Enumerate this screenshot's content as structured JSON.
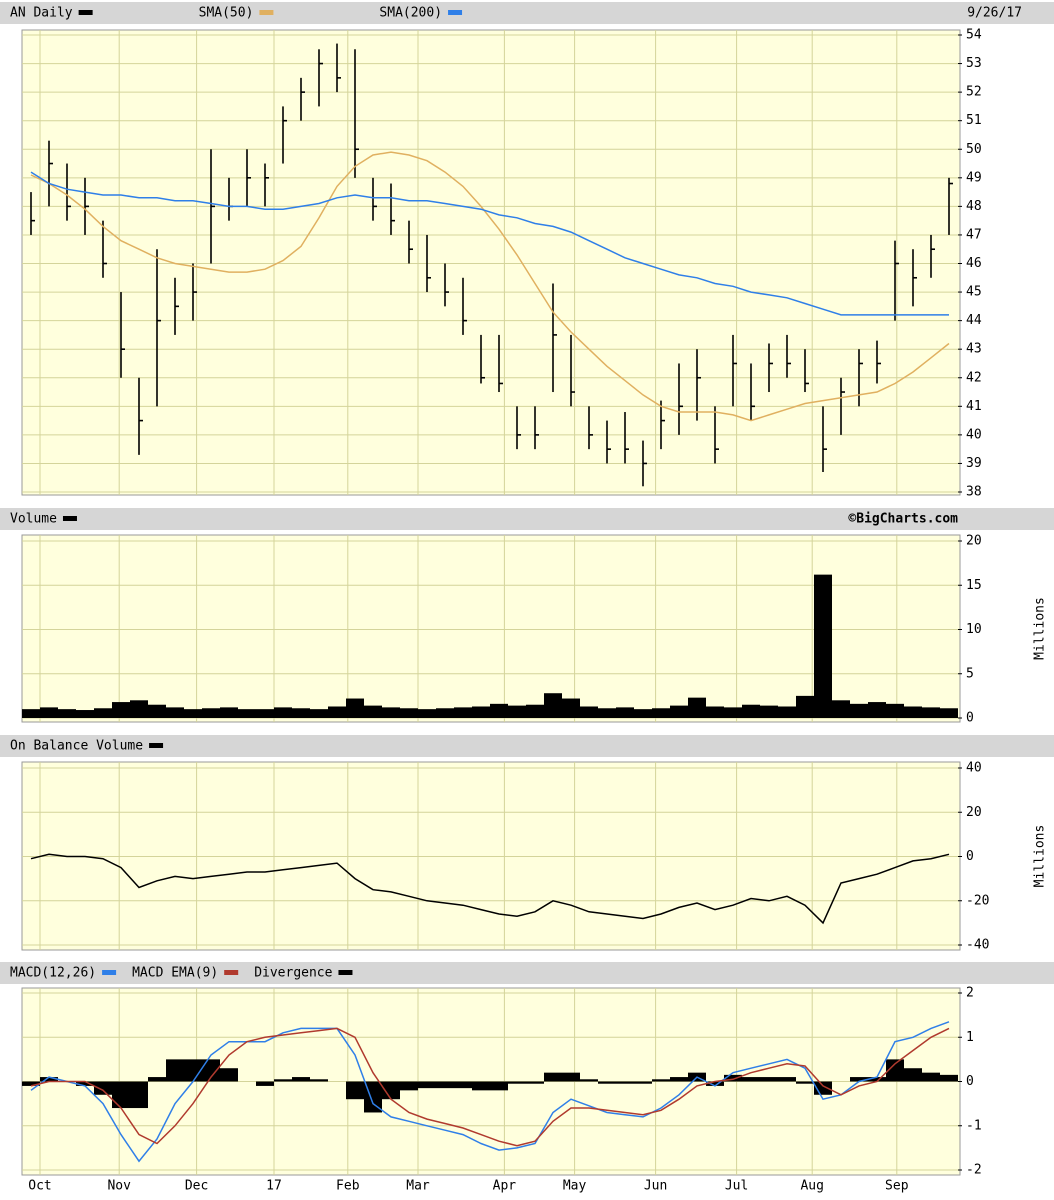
{
  "chart_data": [
    {
      "type": "ohlc",
      "date": "9/26/17",
      "x": [
        0.5,
        1.5,
        2.5,
        3.5,
        4.5,
        5.5,
        6.5,
        7.5,
        8.5,
        9.5,
        10.5,
        11.5,
        12.5,
        13.5,
        14.5,
        15.5,
        16.5,
        17.5,
        18.5,
        19.5,
        20.5,
        21.5,
        22.5,
        23.5,
        24.5,
        25.5,
        26.5,
        27.5,
        28.5,
        29.5,
        30.5,
        31.5,
        32.5,
        33.5,
        34.5,
        35.5,
        36.5,
        37.5,
        38.5,
        39.5,
        40.5,
        41.5,
        42.5,
        43.5,
        44.5,
        45.5,
        46.5,
        47.5,
        48.5,
        49.5,
        50.5,
        51.5
      ],
      "xlim": [
        0,
        52
      ],
      "ylim": [
        38,
        54
      ],
      "yticks": [
        38,
        39,
        40,
        41,
        42,
        43,
        44,
        45,
        46,
        47,
        48,
        49,
        50,
        51,
        52,
        53,
        54
      ],
      "grid": true,
      "series": [
        {
          "name": "AN Daily",
          "type": "ohlc",
          "color": "#000000",
          "high": [
            48.5,
            50.3,
            49.5,
            49,
            47.5,
            45,
            42,
            46.5,
            45.5,
            46,
            50,
            49,
            50,
            49.5,
            51.5,
            52.5,
            53.5,
            53.7,
            53.5,
            49,
            48.8,
            47.5,
            47,
            46,
            45.5,
            43.5,
            43.5,
            41,
            41,
            45.3,
            43.5,
            41,
            40.5,
            40.8,
            39.8,
            41.2,
            42.5,
            43,
            41,
            43.5,
            42.5,
            43.2,
            43.5,
            43,
            41,
            42,
            43,
            43.3,
            46.8,
            46.5,
            47,
            49
          ],
          "low": [
            47,
            48,
            47.5,
            47,
            45.5,
            42,
            39.3,
            41,
            43.5,
            44,
            46,
            47.5,
            48,
            48,
            49.5,
            51,
            51.5,
            52,
            49,
            47.5,
            47,
            46,
            45,
            44.5,
            43.5,
            41.8,
            41.5,
            39.5,
            39.5,
            41.5,
            41,
            39.5,
            39,
            39,
            38.2,
            39.5,
            40,
            40.5,
            39,
            41,
            40.5,
            41.5,
            42,
            41.5,
            38.7,
            40,
            41,
            41.8,
            44,
            44.5,
            45.5,
            47
          ],
          "close": [
            47.5,
            49.5,
            48,
            48,
            46,
            43,
            40.5,
            44,
            44.5,
            45,
            48,
            48,
            49,
            49,
            51,
            52,
            53,
            52.5,
            50,
            48,
            47.5,
            46.5,
            45.5,
            45,
            44,
            42,
            41.8,
            40,
            40,
            43.5,
            41.5,
            40,
            39.5,
            39.5,
            39,
            40.5,
            41,
            42,
            39.5,
            42.5,
            41,
            42.5,
            42.5,
            41.8,
            39.5,
            41.5,
            42.5,
            42.5,
            46,
            45.5,
            46.5,
            48.8
          ]
        },
        {
          "name": "SMA(50)",
          "type": "line",
          "color": "#e0b060",
          "values": [
            49.1,
            48.8,
            48.4,
            47.9,
            47.3,
            46.8,
            46.5,
            46.2,
            46,
            45.9,
            45.8,
            45.7,
            45.7,
            45.8,
            46.1,
            46.6,
            47.6,
            48.7,
            49.4,
            49.8,
            49.9,
            49.8,
            49.6,
            49.2,
            48.7,
            48,
            47.2,
            46.3,
            45.3,
            44.3,
            43.6,
            43,
            42.4,
            41.9,
            41.4,
            41,
            40.8,
            40.8,
            40.8,
            40.7,
            40.5,
            40.7,
            40.9,
            41.1,
            41.2,
            41.3,
            41.4,
            41.5,
            41.8,
            42.2,
            42.7,
            43.2
          ]
        },
        {
          "name": "SMA(200)",
          "type": "line",
          "color": "#2f7fe8",
          "values": [
            49.2,
            48.8,
            48.6,
            48.5,
            48.4,
            48.4,
            48.3,
            48.3,
            48.2,
            48.2,
            48.1,
            48,
            48,
            47.9,
            47.9,
            48,
            48.1,
            48.3,
            48.4,
            48.3,
            48.3,
            48.2,
            48.2,
            48.1,
            48,
            47.9,
            47.7,
            47.6,
            47.4,
            47.3,
            47.1,
            46.8,
            46.5,
            46.2,
            46,
            45.8,
            45.6,
            45.5,
            45.3,
            45.2,
            45,
            44.9,
            44.8,
            44.6,
            44.4,
            44.2,
            44.2,
            44.2,
            44.2,
            44.2,
            44.2,
            44.2
          ]
        }
      ]
    },
    {
      "type": "bar",
      "source": "©BigCharts.com",
      "ylabel": "Millions",
      "x": [
        0.5,
        1.5,
        2.5,
        3.5,
        4.5,
        5.5,
        6.5,
        7.5,
        8.5,
        9.5,
        10.5,
        11.5,
        12.5,
        13.5,
        14.5,
        15.5,
        16.5,
        17.5,
        18.5,
        19.5,
        20.5,
        21.5,
        22.5,
        23.5,
        24.5,
        25.5,
        26.5,
        27.5,
        28.5,
        29.5,
        30.5,
        31.5,
        32.5,
        33.5,
        34.5,
        35.5,
        36.5,
        37.5,
        38.5,
        39.5,
        40.5,
        41.5,
        42.5,
        43.5,
        44.5,
        45.5,
        46.5,
        47.5,
        48.5,
        49.5,
        50.5,
        51.5
      ],
      "xlim": [
        0,
        52
      ],
      "ylim": [
        0,
        20
      ],
      "yticks": [
        0,
        5,
        10,
        15,
        20
      ],
      "grid": true,
      "series": [
        {
          "name": "Volume",
          "type": "bar",
          "color": "#000000",
          "values": [
            1,
            1.2,
            1,
            0.9,
            1.1,
            1.8,
            2,
            1.5,
            1.2,
            1,
            1.1,
            1.2,
            1,
            1,
            1.2,
            1.1,
            1,
            1.3,
            2.2,
            1.4,
            1.2,
            1.1,
            1,
            1.1,
            1.2,
            1.3,
            1.6,
            1.4,
            1.5,
            2.8,
            2.2,
            1.3,
            1.1,
            1.2,
            1,
            1.1,
            1.4,
            2.3,
            1.3,
            1.2,
            1.5,
            1.4,
            1.3,
            2.5,
            16.2,
            2,
            1.6,
            1.8,
            1.6,
            1.3,
            1.2,
            1.1
          ]
        }
      ]
    },
    {
      "type": "line",
      "ylabel": "Millions",
      "x": [
        0.5,
        1.5,
        2.5,
        3.5,
        4.5,
        5.5,
        6.5,
        7.5,
        8.5,
        9.5,
        10.5,
        11.5,
        12.5,
        13.5,
        14.5,
        15.5,
        16.5,
        17.5,
        18.5,
        19.5,
        20.5,
        21.5,
        22.5,
        23.5,
        24.5,
        25.5,
        26.5,
        27.5,
        28.5,
        29.5,
        30.5,
        31.5,
        32.5,
        33.5,
        34.5,
        35.5,
        36.5,
        37.5,
        38.5,
        39.5,
        40.5,
        41.5,
        42.5,
        43.5,
        44.5,
        45.5,
        46.5,
        47.5,
        48.5,
        49.5,
        50.5,
        51.5
      ],
      "xlim": [
        0,
        52
      ],
      "ylim": [
        -40,
        40
      ],
      "yticks": [
        -40,
        -20,
        0,
        20,
        40
      ],
      "grid": true,
      "series": [
        {
          "name": "On Balance Volume",
          "type": "line",
          "color": "#000000",
          "values": [
            -1,
            1,
            0,
            0,
            -1,
            -5,
            -14,
            -11,
            -9,
            -10,
            -9,
            -8,
            -7,
            -7,
            -6,
            -5,
            -4,
            -3,
            -10,
            -15,
            -16,
            -18,
            -20,
            -21,
            -22,
            -24,
            -26,
            -27,
            -25,
            -20,
            -22,
            -25,
            -26,
            -27,
            -28,
            -26,
            -23,
            -21,
            -24,
            -22,
            -19,
            -20,
            -18,
            -22,
            -30,
            -12,
            -10,
            -8,
            -5,
            -2,
            -1,
            1
          ]
        }
      ]
    },
    {
      "type": "line",
      "x": [
        0.5,
        1.5,
        2.5,
        3.5,
        4.5,
        5.5,
        6.5,
        7.5,
        8.5,
        9.5,
        10.5,
        11.5,
        12.5,
        13.5,
        14.5,
        15.5,
        16.5,
        17.5,
        18.5,
        19.5,
        20.5,
        21.5,
        22.5,
        23.5,
        24.5,
        25.5,
        26.5,
        27.5,
        28.5,
        29.5,
        30.5,
        31.5,
        32.5,
        33.5,
        34.5,
        35.5,
        36.5,
        37.5,
        38.5,
        39.5,
        40.5,
        41.5,
        42.5,
        43.5,
        44.5,
        45.5,
        46.5,
        47.5,
        48.5,
        49.5,
        50.5,
        51.5
      ],
      "xlim": [
        0,
        52
      ],
      "ylim": [
        -2,
        2
      ],
      "yticks": [
        -2,
        -1,
        0,
        1,
        2
      ],
      "grid": true,
      "xticks": [
        {
          "value": 1,
          "label": "Oct"
        },
        {
          "value": 5.4,
          "label": "Nov"
        },
        {
          "value": 9.7,
          "label": "Dec"
        },
        {
          "value": 14,
          "label": "17"
        },
        {
          "value": 18.1,
          "label": "Feb"
        },
        {
          "value": 22,
          "label": "Mar"
        },
        {
          "value": 26.8,
          "label": "Apr"
        },
        {
          "value": 30.7,
          "label": "May"
        },
        {
          "value": 35.2,
          "label": "Jun"
        },
        {
          "value": 39.7,
          "label": "Jul"
        },
        {
          "value": 43.9,
          "label": "Aug"
        },
        {
          "value": 48.6,
          "label": "Sep"
        }
      ],
      "series": [
        {
          "name": "MACD(12,26)",
          "type": "line",
          "color": "#2f7fe8",
          "values": [
            -0.2,
            0.1,
            0,
            -0.1,
            -0.5,
            -1.2,
            -1.8,
            -1.3,
            -0.5,
            0,
            0.6,
            0.9,
            0.9,
            0.9,
            1.1,
            1.2,
            1.2,
            1.2,
            0.6,
            -0.5,
            -0.8,
            -0.9,
            -1,
            -1.1,
            -1.2,
            -1.4,
            -1.55,
            -1.5,
            -1.4,
            -0.7,
            -0.4,
            -0.55,
            -0.7,
            -0.75,
            -0.8,
            -0.6,
            -0.3,
            0.1,
            -0.1,
            0.2,
            0.3,
            0.4,
            0.5,
            0.3,
            -0.4,
            -0.3,
            0,
            0.1,
            0.9,
            1,
            1.2,
            1.35
          ]
        },
        {
          "name": "MACD EMA(9)",
          "type": "line",
          "color": "#b03a2e",
          "values": [
            -0.1,
            0,
            0,
            0,
            -0.2,
            -0.6,
            -1.2,
            -1.4,
            -1,
            -0.5,
            0.1,
            0.6,
            0.9,
            1,
            1.05,
            1.1,
            1.15,
            1.2,
            1,
            0.2,
            -0.4,
            -0.7,
            -0.85,
            -0.95,
            -1.05,
            -1.2,
            -1.35,
            -1.45,
            -1.35,
            -0.9,
            -0.6,
            -0.6,
            -0.65,
            -0.7,
            -0.75,
            -0.65,
            -0.4,
            -0.1,
            0,
            0.05,
            0.2,
            0.3,
            0.4,
            0.35,
            -0.1,
            -0.3,
            -0.1,
            0,
            0.4,
            0.7,
            1,
            1.2
          ]
        },
        {
          "name": "Divergence",
          "type": "bar",
          "color": "#000000",
          "values": [
            -0.1,
            0.1,
            0,
            -0.1,
            -0.3,
            -0.6,
            -0.6,
            0.1,
            0.5,
            0.5,
            0.5,
            0.3,
            0,
            -0.1,
            0.05,
            0.1,
            0.05,
            0,
            -0.4,
            -0.7,
            -0.4,
            -0.2,
            -0.15,
            -0.15,
            -0.15,
            -0.2,
            -0.2,
            -0.05,
            -0.05,
            0.2,
            0.2,
            0.05,
            -0.05,
            -0.05,
            -0.05,
            0.05,
            0.1,
            0.2,
            -0.1,
            0.15,
            0.1,
            0.1,
            0.1,
            -0.05,
            -0.3,
            0,
            0.1,
            0.1,
            0.5,
            0.3,
            0.2,
            0.15
          ]
        }
      ]
    }
  ]
}
